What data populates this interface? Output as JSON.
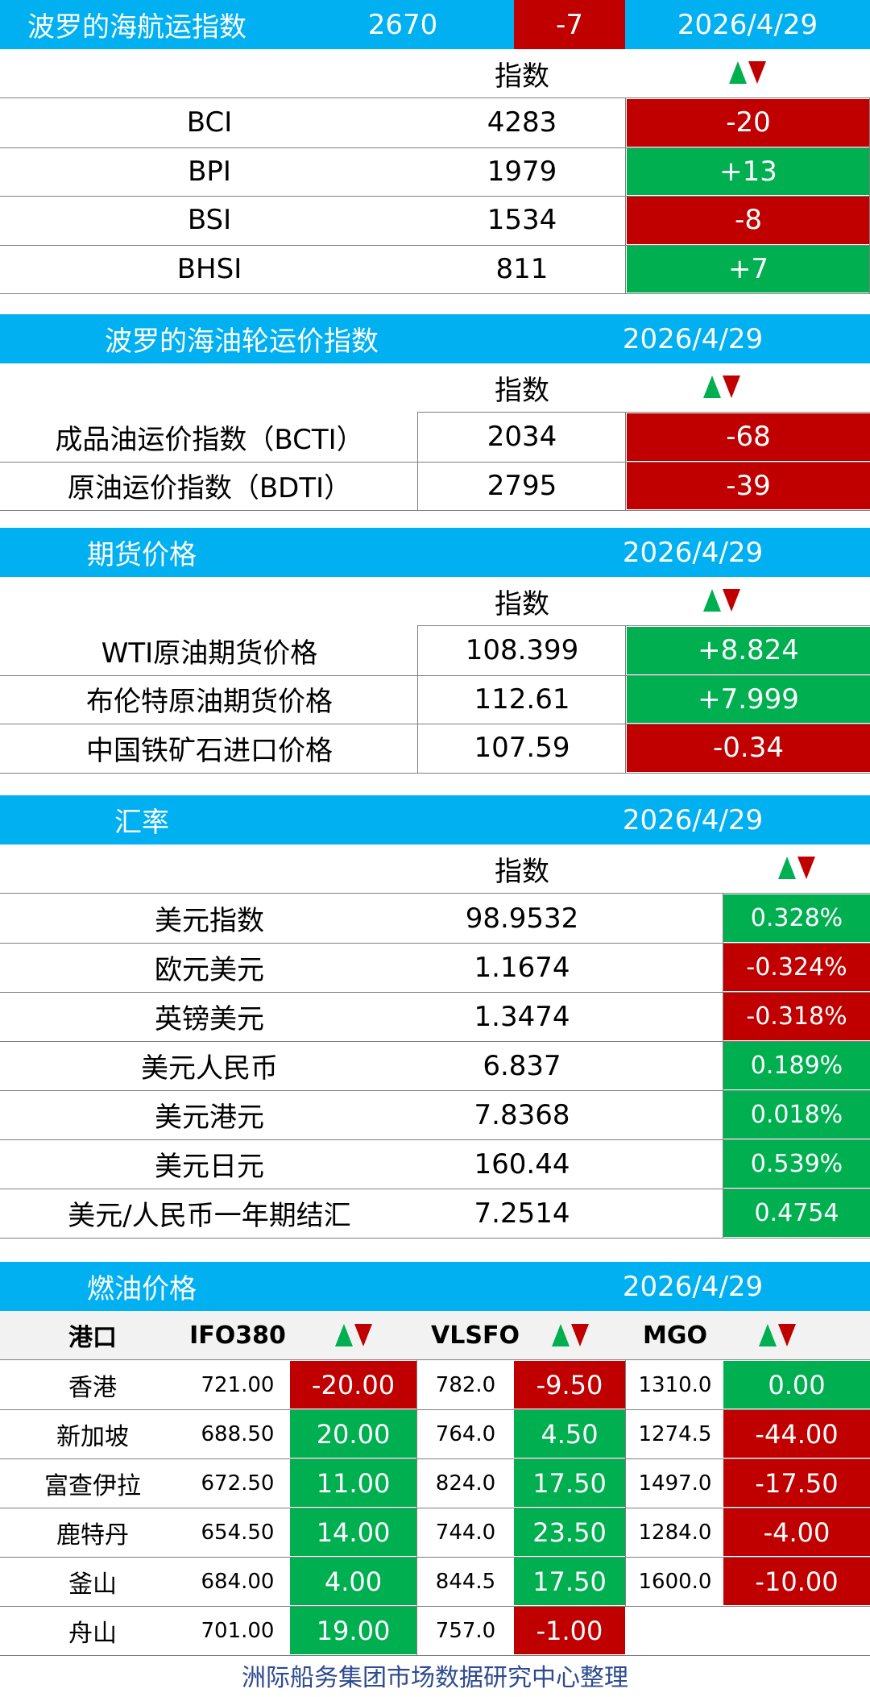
{
  "colors": {
    "header_bg": "#00b0f0",
    "down": "#c00000",
    "up": "#00b050",
    "footer_text": "#2e4b8f"
  },
  "baltic": {
    "title": "波罗的海航运指数",
    "index": "2670",
    "change": "-7",
    "date": "2026/4/29",
    "col_index": "指数",
    "rows": [
      {
        "name": "BCI",
        "value": "4283",
        "change": "-20"
      },
      {
        "name": "BPI",
        "value": "1979",
        "change": "+13"
      },
      {
        "name": "BSI",
        "value": "1534",
        "change": "-8"
      },
      {
        "name": "BHSI",
        "value": "811",
        "change": "+7"
      }
    ]
  },
  "tanker": {
    "title": "波罗的海油轮运价指数",
    "date": "2026/4/29",
    "col_index": "指数",
    "rows": [
      {
        "name": "成品油运价指数（BCTI）",
        "value": "2034",
        "change": "-68"
      },
      {
        "name": "原油运价指数（BDTI）",
        "value": "2795",
        "change": "-39"
      }
    ]
  },
  "futures": {
    "title": "期货价格",
    "date": "2026/4/29",
    "col_index": "指数",
    "rows": [
      {
        "name": "WTI原油期货价格",
        "value": "108.399",
        "change": "+8.824"
      },
      {
        "name": "布伦特原油期货价格",
        "value": "112.61",
        "change": "+7.999"
      },
      {
        "name": "中国铁矿石进口价格",
        "value": "107.59",
        "change": "-0.34"
      }
    ]
  },
  "fx": {
    "title": "汇率",
    "date": "2026/4/29",
    "col_index": "指数",
    "rows": [
      {
        "name": "美元指数",
        "value": "98.9532",
        "change": "0.328%"
      },
      {
        "name": "欧元美元",
        "value": "1.1674",
        "change": "-0.324%"
      },
      {
        "name": "英镑美元",
        "value": "1.3474",
        "change": "-0.318%"
      },
      {
        "name": "美元人民币",
        "value": "6.837",
        "change": "0.189%"
      },
      {
        "name": "美元港元",
        "value": "7.8368",
        "change": "0.018%"
      },
      {
        "name": "美元日元",
        "value": "160.44",
        "change": "0.539%"
      },
      {
        "name": "美元/人民币一年期结汇",
        "value": "7.2514",
        "change": "0.4754"
      }
    ]
  },
  "fuel": {
    "title": "燃油价格",
    "date": "2026/4/29",
    "headers": {
      "port": "港口",
      "ifo": "IFO380",
      "vlsfo": "VLSFO",
      "mgo": "MGO"
    },
    "rows": [
      {
        "port": "香港",
        "ifo": "721.00",
        "ifo_chg": "-20.00",
        "vlsfo": "782.0",
        "vlsfo_chg": "-9.50",
        "mgo": "1310.0",
        "mgo_chg": "0.00"
      },
      {
        "port": "新加坡",
        "ifo": "688.50",
        "ifo_chg": "20.00",
        "vlsfo": "764.0",
        "vlsfo_chg": "4.50",
        "mgo": "1274.5",
        "mgo_chg": "-44.00"
      },
      {
        "port": "富查伊拉",
        "ifo": "672.50",
        "ifo_chg": "11.00",
        "vlsfo": "824.0",
        "vlsfo_chg": "17.50",
        "mgo": "1497.0",
        "mgo_chg": "-17.50"
      },
      {
        "port": "鹿特丹",
        "ifo": "654.50",
        "ifo_chg": "14.00",
        "vlsfo": "744.0",
        "vlsfo_chg": "23.50",
        "mgo": "1284.0",
        "mgo_chg": "-4.00"
      },
      {
        "port": "釜山",
        "ifo": "684.00",
        "ifo_chg": "4.00",
        "vlsfo": "844.5",
        "vlsfo_chg": "17.50",
        "mgo": "1600.0",
        "mgo_chg": "-10.00"
      },
      {
        "port": "舟山",
        "ifo": "701.00",
        "ifo_chg": "19.00",
        "vlsfo": "757.0",
        "vlsfo_chg": "-1.00",
        "mgo": "",
        "mgo_chg": ""
      }
    ]
  },
  "footer": "洲际船务集团市场数据研究中心整理"
}
